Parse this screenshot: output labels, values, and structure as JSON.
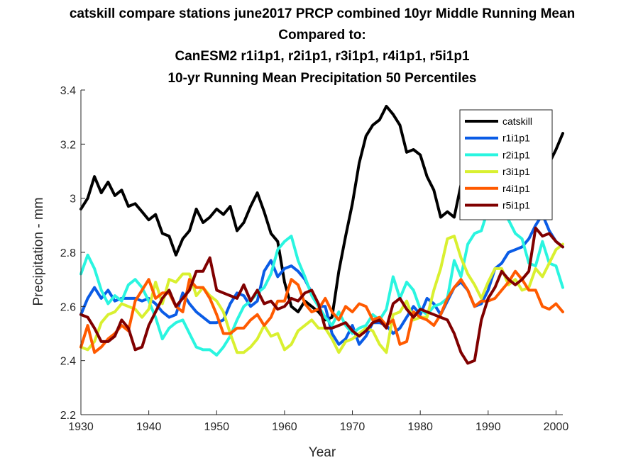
{
  "chart_data": {
    "type": "line",
    "title_lines": [
      "catskill compare stations june2017 PRCP combined 10yr Middle Running Mean",
      "Compared to:",
      "CanESM2 r1i1p1, r2i1p1, r3i1p1, r4i1p1, r5i1p1",
      "10-yr Running Mean Precipitation 50 Percentiles"
    ],
    "xlabel": "Year",
    "ylabel": "Precipitation - mm",
    "xlim": [
      1930,
      2001
    ],
    "ylim": [
      2.2,
      3.4
    ],
    "xticks": [
      1930,
      1940,
      1950,
      1960,
      1970,
      1980,
      1990,
      2000
    ],
    "yticks": [
      2.2,
      2.4,
      2.6,
      2.8,
      3,
      3.2,
      3.4
    ],
    "ytick_labels": [
      "2.2",
      "2.4",
      "2.6",
      "2.8",
      "3",
      "3.2",
      "3.4"
    ],
    "grid": false,
    "legend_position": "top-right",
    "x": [
      1930,
      1931,
      1932,
      1933,
      1934,
      1935,
      1936,
      1937,
      1938,
      1939,
      1940,
      1941,
      1942,
      1943,
      1944,
      1945,
      1946,
      1947,
      1948,
      1949,
      1950,
      1951,
      1952,
      1953,
      1954,
      1955,
      1956,
      1957,
      1958,
      1959,
      1960,
      1961,
      1962,
      1963,
      1964,
      1965,
      1966,
      1967,
      1968,
      1969,
      1970,
      1971,
      1972,
      1973,
      1974,
      1975,
      1976,
      1977,
      1978,
      1979,
      1980,
      1981,
      1982,
      1983,
      1984,
      1985,
      1986,
      1987,
      1988,
      1989,
      1990,
      1991,
      1992,
      1993,
      1994,
      1995,
      1996,
      1997,
      1998,
      1999,
      2000,
      2001
    ],
    "series": [
      {
        "name": "catskill",
        "color": "#000000",
        "values": [
          2.96,
          3.0,
          3.08,
          3.02,
          3.06,
          3.01,
          3.03,
          2.97,
          2.98,
          2.95,
          2.92,
          2.94,
          2.87,
          2.86,
          2.79,
          2.85,
          2.88,
          2.96,
          2.91,
          2.93,
          2.96,
          2.94,
          2.97,
          2.88,
          2.91,
          2.97,
          3.02,
          2.95,
          2.87,
          2.84,
          2.69,
          2.6,
          2.58,
          2.62,
          2.6,
          2.58,
          2.55,
          2.56,
          2.73,
          2.86,
          2.98,
          3.13,
          3.23,
          3.27,
          3.29,
          3.34,
          3.31,
          3.27,
          3.17,
          3.18,
          3.16,
          3.08,
          3.03,
          2.93,
          2.95,
          2.93,
          3.05,
          3.08,
          3.1,
          3.06,
          3.12,
          3.1,
          3.16,
          3.13,
          3.11,
          3.14,
          3.1,
          3.12,
          3.14,
          3.13,
          3.18,
          3.24
        ]
      },
      {
        "name": "r1i1p1",
        "color": "#0a5ce6",
        "values": [
          2.57,
          2.63,
          2.67,
          2.63,
          2.66,
          2.62,
          2.63,
          2.63,
          2.63,
          2.62,
          2.63,
          2.61,
          2.58,
          2.56,
          2.57,
          2.65,
          2.61,
          2.58,
          2.56,
          2.54,
          2.54,
          2.55,
          2.61,
          2.65,
          2.64,
          2.6,
          2.62,
          2.73,
          2.77,
          2.71,
          2.74,
          2.75,
          2.73,
          2.7,
          2.65,
          2.6,
          2.6,
          2.5,
          2.46,
          2.48,
          2.53,
          2.46,
          2.49,
          2.54,
          2.54,
          2.53,
          2.5,
          2.52,
          2.56,
          2.6,
          2.57,
          2.63,
          2.61,
          2.57,
          2.62,
          2.67,
          2.69,
          2.66,
          2.6,
          2.61,
          2.66,
          2.74,
          2.76,
          2.8,
          2.81,
          2.82,
          2.85,
          2.9,
          2.94,
          2.88,
          2.84,
          2.82
        ]
      },
      {
        "name": "r2i1p1",
        "color": "#2af5e0",
        "values": [
          2.72,
          2.79,
          2.74,
          2.66,
          2.61,
          2.64,
          2.62,
          2.68,
          2.7,
          2.67,
          2.62,
          2.56,
          2.48,
          2.52,
          2.54,
          2.55,
          2.5,
          2.45,
          2.44,
          2.44,
          2.42,
          2.45,
          2.49,
          2.55,
          2.6,
          2.62,
          2.65,
          2.67,
          2.72,
          2.81,
          2.84,
          2.86,
          2.77,
          2.71,
          2.64,
          2.6,
          2.56,
          2.53,
          2.58,
          2.53,
          2.5,
          2.52,
          2.53,
          2.57,
          2.55,
          2.59,
          2.71,
          2.63,
          2.69,
          2.66,
          2.59,
          2.57,
          2.6,
          2.61,
          2.63,
          2.77,
          2.71,
          2.83,
          2.87,
          2.88,
          2.96,
          3.06,
          2.99,
          2.92,
          2.87,
          2.85,
          2.76,
          2.75,
          2.84,
          2.76,
          2.75,
          2.67
        ]
      },
      {
        "name": "r3i1p1",
        "color": "#d9f030",
        "values": [
          2.45,
          2.44,
          2.47,
          2.54,
          2.57,
          2.58,
          2.61,
          2.6,
          2.59,
          2.56,
          2.59,
          2.69,
          2.61,
          2.7,
          2.69,
          2.72,
          2.72,
          2.64,
          2.67,
          2.64,
          2.62,
          2.58,
          2.5,
          2.43,
          2.43,
          2.45,
          2.48,
          2.53,
          2.49,
          2.5,
          2.44,
          2.46,
          2.51,
          2.53,
          2.55,
          2.52,
          2.52,
          2.48,
          2.43,
          2.47,
          2.48,
          2.5,
          2.52,
          2.51,
          2.46,
          2.43,
          2.57,
          2.58,
          2.62,
          2.55,
          2.56,
          2.56,
          2.66,
          2.74,
          2.85,
          2.86,
          2.78,
          2.72,
          2.68,
          2.63,
          2.69,
          2.74,
          2.74,
          2.68,
          2.7,
          2.66,
          2.67,
          2.74,
          2.71,
          2.76,
          2.81,
          2.83
        ]
      },
      {
        "name": "r4i1p1",
        "color": "#ff5a00",
        "values": [
          2.45,
          2.53,
          2.43,
          2.45,
          2.48,
          2.5,
          2.53,
          2.51,
          2.62,
          2.66,
          2.7,
          2.63,
          2.65,
          2.65,
          2.6,
          2.58,
          2.7,
          2.67,
          2.67,
          2.63,
          2.57,
          2.5,
          2.5,
          2.52,
          2.52,
          2.55,
          2.57,
          2.53,
          2.56,
          2.62,
          2.62,
          2.7,
          2.68,
          2.61,
          2.58,
          2.59,
          2.63,
          2.58,
          2.55,
          2.6,
          2.58,
          2.61,
          2.6,
          2.55,
          2.56,
          2.53,
          2.55,
          2.46,
          2.47,
          2.58,
          2.56,
          2.55,
          2.53,
          2.57,
          2.63,
          2.67,
          2.7,
          2.66,
          2.6,
          2.62,
          2.62,
          2.63,
          2.66,
          2.69,
          2.73,
          2.7,
          2.66,
          2.66,
          2.6,
          2.59,
          2.61,
          2.58
        ]
      },
      {
        "name": "r5i1p1",
        "color": "#800000",
        "values": [
          2.57,
          2.56,
          2.52,
          2.47,
          2.47,
          2.49,
          2.55,
          2.52,
          2.44,
          2.45,
          2.53,
          2.58,
          2.63,
          2.66,
          2.6,
          2.63,
          2.66,
          2.73,
          2.73,
          2.78,
          2.66,
          2.65,
          2.64,
          2.63,
          2.68,
          2.62,
          2.66,
          2.61,
          2.62,
          2.59,
          2.6,
          2.63,
          2.62,
          2.65,
          2.66,
          2.61,
          2.52,
          2.52,
          2.53,
          2.54,
          2.51,
          2.49,
          2.51,
          2.54,
          2.55,
          2.52,
          2.61,
          2.63,
          2.59,
          2.56,
          2.59,
          2.58,
          2.57,
          2.56,
          2.55,
          2.5,
          2.43,
          2.39,
          2.4,
          2.55,
          2.63,
          2.67,
          2.73,
          2.7,
          2.68,
          2.7,
          2.73,
          2.89,
          2.86,
          2.87,
          2.84,
          2.82
        ]
      }
    ]
  }
}
